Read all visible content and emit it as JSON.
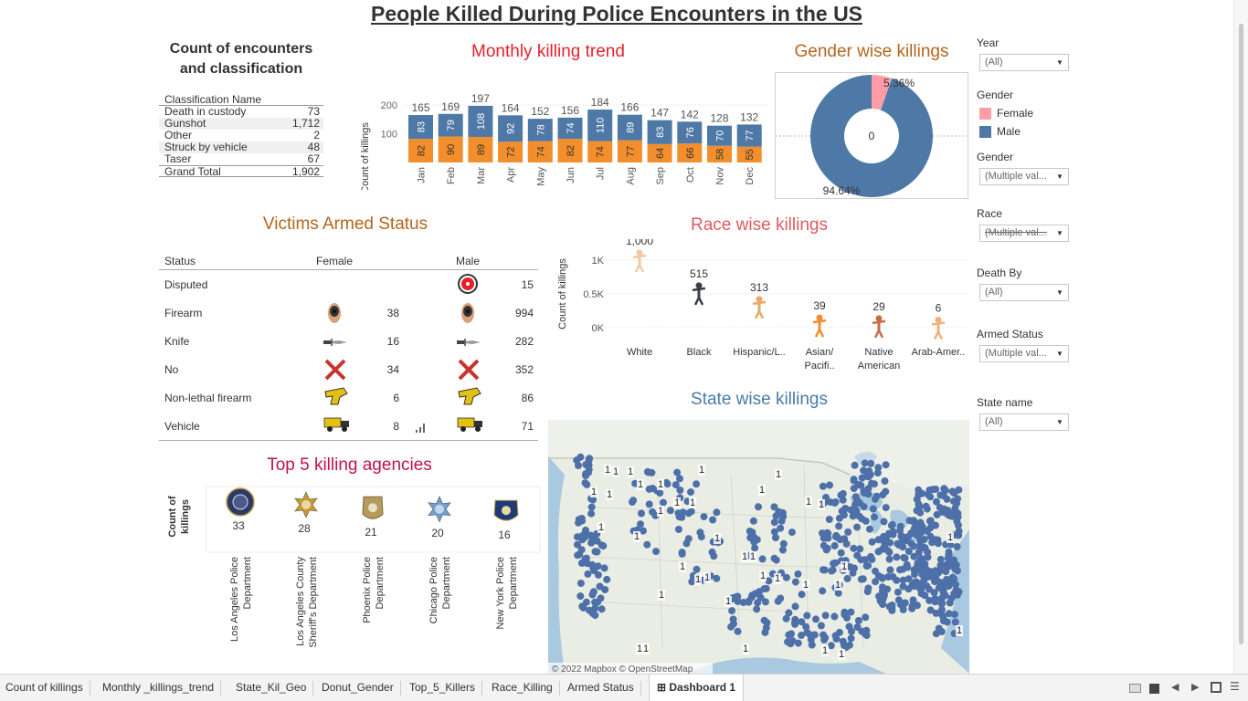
{
  "title": "People Killed During Police Encounters in the US",
  "classification": {
    "heading_line1": "Count of encounters",
    "heading_line2": "and classification",
    "col_header": "Classification Name",
    "rows": [
      {
        "name": "Death in custody",
        "value": "73"
      },
      {
        "name": "Gunshot",
        "value": "1,712"
      },
      {
        "name": "Other",
        "value": "2"
      },
      {
        "name": "Struck by vehicle",
        "value": "48"
      },
      {
        "name": "Taser",
        "value": "67"
      }
    ],
    "total_label": "Grand Total",
    "total_value": "1,902"
  },
  "monthly": {
    "title": "Monthly  killing trend",
    "ylabel": "Count of killings",
    "colors": {
      "male": "#4e79a7",
      "female": "#f28e2b"
    }
  },
  "gender": {
    "title": "Gender wise killings",
    "female_pct": "5.36%",
    "male_pct": "94.64%",
    "center": "0",
    "colors": {
      "female": "#ff9da7",
      "male": "#4e79a7"
    }
  },
  "race": {
    "title": "Race wise killings",
    "ylabel": "Count of killings"
  },
  "armed": {
    "title": "Victims Armed Status",
    "col_status": "Status",
    "col_female": "Female",
    "col_male": "Male",
    "rows": [
      {
        "status": "Disputed",
        "female": "",
        "male": "15",
        "icon": "target-icon"
      },
      {
        "status": "Firearm",
        "female": "38",
        "male": "994",
        "icon": "gun-icon"
      },
      {
        "status": "Knife",
        "female": "16",
        "male": "282",
        "icon": "knife-icon"
      },
      {
        "status": "No",
        "female": "34",
        "male": "352",
        "icon": "x-icon"
      },
      {
        "status": "Non-lethal firearm",
        "female": "6",
        "male": "86",
        "icon": "taser-icon"
      },
      {
        "status": "Vehicle",
        "female": "8",
        "male": "71",
        "icon": "truck-icon"
      }
    ]
  },
  "agencies": {
    "title": "Top 5 killing agencies",
    "ylabel_line1": "Count of",
    "ylabel_line2": "killings",
    "items": [
      {
        "value": "33",
        "name1": "Los Angeles Police",
        "name2": "Department",
        "badge": "lapd-badge-icon"
      },
      {
        "value": "28",
        "name1": "Los Angeles County",
        "name2": "Sheriff's Department",
        "badge": "sheriff-star-icon"
      },
      {
        "value": "21",
        "name1": "Phoenix Police",
        "name2": "Department",
        "badge": "phoenix-badge-icon"
      },
      {
        "value": "20",
        "name1": "Chicago Police",
        "name2": "Department",
        "badge": "chicago-star-icon"
      },
      {
        "value": "16",
        "name1": "New York Police",
        "name2": "Department",
        "badge": "nypd-patch-icon"
      }
    ]
  },
  "map": {
    "title": "State wise killings",
    "attribution": "© 2022 Mapbox © OpenStreetMap",
    "point_label": "1"
  },
  "filters": {
    "year_label": "Year",
    "year_value": "(All)",
    "gender_legend_label": "Gender",
    "legend_female": "Female",
    "legend_male": "Male",
    "gender_label": "Gender",
    "gender_value": "(Multiple val...",
    "race_label": "Race",
    "race_value": "(Multiple val...",
    "death_label": "Death By",
    "death_value": "(All)",
    "armed_label": "Armed Status",
    "armed_value": "(Multiple val...",
    "state_label": "State name",
    "state_value": "(All)"
  },
  "tabs": [
    "Count of killings",
    "Monthly _killings_trend",
    "State_Kil_Geo",
    "Donut_Gender",
    "Top_5_Killers",
    "Race_Killing",
    "Armed Status",
    "Dashboard 1"
  ],
  "chart_data": [
    {
      "type": "bar",
      "title": "Monthly  killing trend",
      "ylabel": "Count of killings",
      "xlabel": "",
      "categories": [
        "Jan",
        "Feb",
        "Mar",
        "Apr",
        "May",
        "Jun",
        "Jul",
        "Aug",
        "Sep",
        "Oct",
        "Nov",
        "Dec"
      ],
      "series": [
        {
          "name": "Female",
          "values": [
            82,
            90,
            89,
            72,
            74,
            82,
            74,
            77,
            64,
            66,
            58,
            55
          ]
        },
        {
          "name": "Male",
          "values": [
            83,
            79,
            108,
            92,
            78,
            74,
            110,
            89,
            83,
            76,
            70,
            77
          ]
        }
      ],
      "totals": [
        165,
        169,
        197,
        164,
        152,
        156,
        184,
        166,
        147,
        142,
        128,
        132
      ],
      "yticks": [
        "100",
        "200"
      ],
      "stacked": true
    },
    {
      "type": "pie",
      "title": "Gender wise killings",
      "categories": [
        "Female",
        "Male"
      ],
      "values": [
        5.36,
        94.64
      ]
    },
    {
      "type": "scatter",
      "title": "Race wise killings",
      "ylabel": "Count of killings",
      "categories": [
        "White",
        "Black",
        "Hispanic/L..",
        "Asian/ Pacifi..",
        "Native American",
        "Arab-Amer.."
      ],
      "values": [
        1000,
        515,
        313,
        39,
        29,
        6
      ],
      "value_labels": [
        "1,000",
        "515",
        "313",
        "39",
        "29",
        "6"
      ],
      "yticks": [
        "0K",
        "0.5K",
        "1K"
      ],
      "ylim": [
        0,
        1000
      ]
    },
    {
      "type": "bar",
      "title": "Top 5 killing agencies",
      "ylabel": "Count of killings",
      "categories": [
        "Los Angeles Police Department",
        "Los Angeles County Sheriff's Department",
        "Phoenix Police Department",
        "Chicago Police Department",
        "New York Police Department"
      ],
      "values": [
        33,
        28,
        21,
        20,
        16
      ]
    }
  ]
}
